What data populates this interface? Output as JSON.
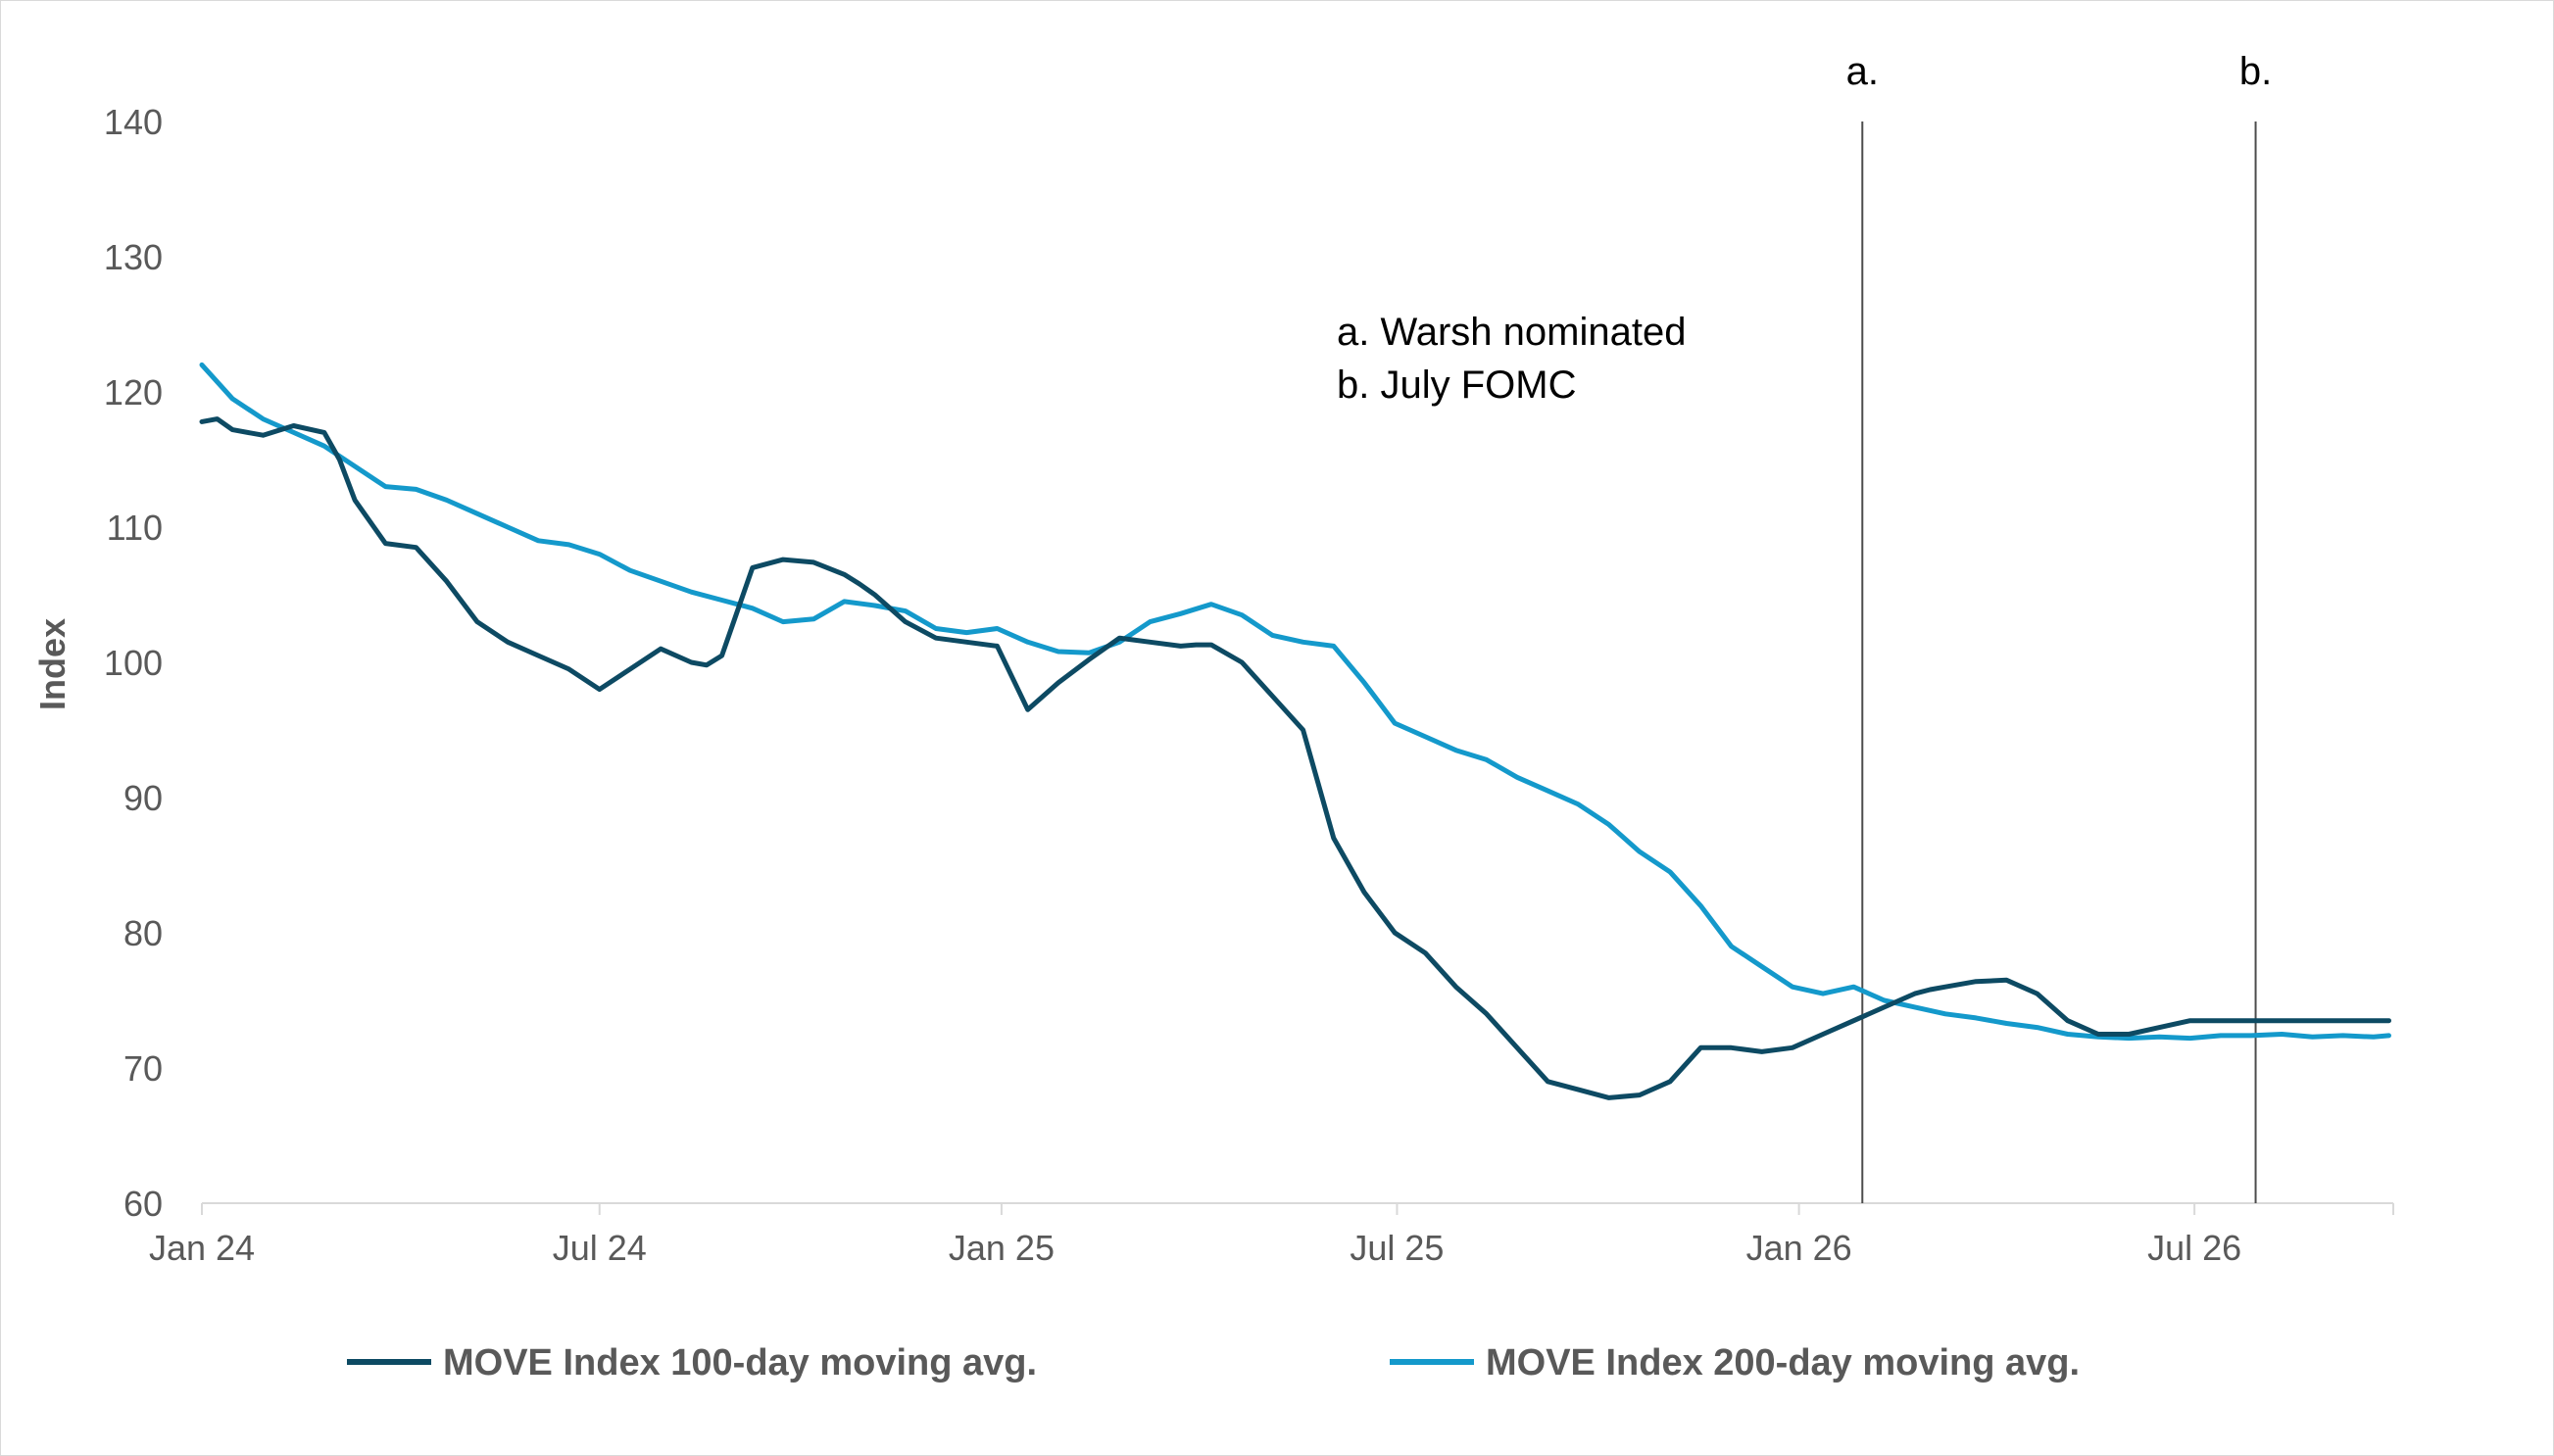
{
  "chart_data": {
    "type": "line",
    "ylabel": "Index",
    "ylim": [
      60,
      140
    ],
    "yticks": [
      60,
      70,
      80,
      90,
      100,
      110,
      120,
      130,
      140
    ],
    "xlim": [
      "2024-01-01",
      "2026-09-30"
    ],
    "xticks": [
      {
        "date": "2024-01-01",
        "label": "Jan 24"
      },
      {
        "date": "2024-07-01",
        "label": "Jul 24"
      },
      {
        "date": "2025-01-01",
        "label": "Jan 25"
      },
      {
        "date": "2025-07-01",
        "label": "Jul 25"
      },
      {
        "date": "2026-01-01",
        "label": "Jan 26"
      },
      {
        "date": "2026-07-01",
        "label": "Jul 26"
      }
    ],
    "grid": false,
    "legend": "bottom",
    "annotations": [
      {
        "label": "a.",
        "date": "2026-01-30",
        "description": "a. Warsh nominated"
      },
      {
        "label": "b.",
        "date": "2026-07-29",
        "description": "b. July FOMC"
      }
    ],
    "series": [
      {
        "name": "MOVE Index 100-day moving avg.",
        "color": "#0d4a63",
        "x": [
          "2024-01-01",
          "2024-01-08",
          "2024-01-15",
          "2024-01-29",
          "2024-02-12",
          "2024-02-26",
          "2024-03-04",
          "2024-03-11",
          "2024-03-25",
          "2024-04-08",
          "2024-04-22",
          "2024-05-06",
          "2024-05-20",
          "2024-06-03",
          "2024-06-17",
          "2024-07-01",
          "2024-07-15",
          "2024-07-29",
          "2024-08-12",
          "2024-08-19",
          "2024-08-26",
          "2024-09-09",
          "2024-09-23",
          "2024-10-07",
          "2024-10-21",
          "2024-10-28",
          "2024-11-04",
          "2024-11-18",
          "2024-12-02",
          "2024-12-16",
          "2024-12-30",
          "2025-01-13",
          "2025-01-27",
          "2025-02-10",
          "2025-02-24",
          "2025-03-10",
          "2025-03-24",
          "2025-03-31",
          "2025-04-07",
          "2025-04-21",
          "2025-05-05",
          "2025-05-19",
          "2025-06-02",
          "2025-06-16",
          "2025-06-30",
          "2025-07-14",
          "2025-07-28",
          "2025-08-11",
          "2025-08-25",
          "2025-09-08",
          "2025-09-22",
          "2025-10-06",
          "2025-10-20",
          "2025-11-03",
          "2025-11-17",
          "2025-12-01",
          "2025-12-15",
          "2025-12-29",
          "2026-01-12",
          "2026-01-26",
          "2026-02-09",
          "2026-02-23",
          "2026-03-02",
          "2026-03-09",
          "2026-03-16",
          "2026-03-23",
          "2026-04-06",
          "2026-04-20",
          "2026-05-04",
          "2026-05-18",
          "2026-06-01",
          "2026-06-15",
          "2026-06-29",
          "2026-07-13",
          "2026-07-27",
          "2026-08-03",
          "2026-08-10",
          "2026-08-17",
          "2026-08-24",
          "2026-08-31",
          "2026-09-07",
          "2026-09-14",
          "2026-09-28"
        ],
        "values": [
          117.8,
          118,
          117.2,
          116.8,
          117.5,
          117,
          115,
          112,
          108.8,
          108.5,
          106,
          103,
          101.5,
          100.5,
          99.5,
          98,
          99.5,
          101,
          100,
          99.8,
          100.5,
          107,
          107.6,
          107.4,
          106.5,
          105.8,
          105,
          103,
          101.8,
          101.5,
          101.2,
          96.5,
          98.5,
          100.2,
          101.8,
          101.5,
          101.2,
          101.3,
          101.3,
          100,
          97.5,
          95,
          87,
          83,
          80,
          78.5,
          76,
          74,
          71.5,
          69,
          68.4,
          67.8,
          68,
          69,
          71.5,
          71.5,
          71.2,
          71.5,
          72.5,
          73.5,
          74.5,
          75.5,
          75.8,
          76,
          76.2,
          76.4,
          76.5,
          75.5,
          73.5,
          72.5,
          72.5,
          73,
          73.5,
          73.5,
          73.5,
          73.5,
          73.5,
          73.5,
          73.5,
          73.5,
          73.5,
          73.5,
          73.5
        ]
      },
      {
        "name": "MOVE Index 200-day moving avg.",
        "color": "#1499cb",
        "x": [
          "2024-01-01",
          "2024-01-15",
          "2024-01-29",
          "2024-02-12",
          "2024-02-26",
          "2024-03-11",
          "2024-03-25",
          "2024-04-08",
          "2024-04-22",
          "2024-05-06",
          "2024-05-20",
          "2024-06-03",
          "2024-06-17",
          "2024-07-01",
          "2024-07-15",
          "2024-07-29",
          "2024-08-12",
          "2024-08-26",
          "2024-09-09",
          "2024-09-23",
          "2024-10-07",
          "2024-10-21",
          "2024-11-04",
          "2024-11-18",
          "2024-12-02",
          "2024-12-16",
          "2024-12-30",
          "2025-01-13",
          "2025-01-27",
          "2025-02-10",
          "2025-02-24",
          "2025-03-10",
          "2025-03-24",
          "2025-04-07",
          "2025-04-21",
          "2025-05-05",
          "2025-05-19",
          "2025-06-02",
          "2025-06-16",
          "2025-06-30",
          "2025-07-14",
          "2025-07-28",
          "2025-08-11",
          "2025-08-25",
          "2025-09-08",
          "2025-09-22",
          "2025-10-06",
          "2025-10-20",
          "2025-11-03",
          "2025-11-17",
          "2025-12-01",
          "2025-12-15",
          "2025-12-29",
          "2026-01-12",
          "2026-01-26",
          "2026-02-09",
          "2026-02-23",
          "2026-03-09",
          "2026-03-23",
          "2026-04-06",
          "2026-04-20",
          "2026-05-04",
          "2026-05-18",
          "2026-06-01",
          "2026-06-15",
          "2026-06-29",
          "2026-07-13",
          "2026-07-27",
          "2026-08-10",
          "2026-08-24",
          "2026-09-07",
          "2026-09-21",
          "2026-09-28"
        ],
        "values": [
          122,
          119.5,
          118,
          117,
          116,
          114.5,
          113,
          112.8,
          112,
          111,
          110,
          109,
          108.7,
          108,
          106.8,
          106,
          105.2,
          104.6,
          104,
          103,
          103.2,
          104.5,
          104.2,
          103.8,
          102.5,
          102.2,
          102.5,
          101.5,
          100.8,
          100.7,
          101.5,
          103,
          103.6,
          104.3,
          103.5,
          102,
          101.5,
          101.2,
          98.5,
          95.5,
          94.5,
          93.5,
          92.8,
          91.5,
          90.5,
          89.5,
          88,
          86,
          84.5,
          82,
          79,
          77.5,
          76,
          75.5,
          76,
          75,
          74.5,
          74,
          73.7,
          73.3,
          73,
          72.5,
          72.3,
          72.2,
          72.3,
          72.2,
          72.4,
          72.4,
          72.5,
          72.3,
          72.4,
          72.3,
          72.4
        ]
      }
    ]
  }
}
